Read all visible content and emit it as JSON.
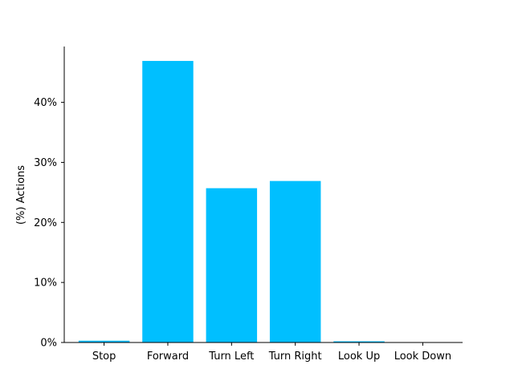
{
  "chart_data": {
    "type": "bar",
    "title": "",
    "xlabel": "",
    "ylabel": "(%) Actions",
    "categories": [
      "Stop",
      "Forward",
      "Turn Left",
      "Turn Right",
      "Look Up",
      "Look Down"
    ],
    "values": [
      0.3,
      46.9,
      25.7,
      26.9,
      0.2,
      0.0
    ],
    "ylim": [
      0,
      49.3
    ],
    "yticks": [
      0,
      10,
      20,
      30,
      40
    ],
    "ytick_labels": [
      "0%",
      "10%",
      "20%",
      "30%",
      "40%"
    ],
    "grid": false,
    "legend": "none",
    "bar_color": "#00BFFF",
    "spines": [
      "left",
      "bottom"
    ]
  }
}
